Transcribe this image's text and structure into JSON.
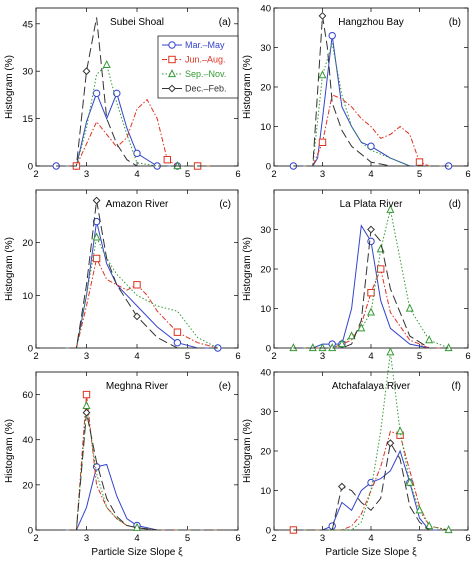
{
  "chart_data": {
    "type": "line",
    "xlabel": "Particle Size Slope ξ",
    "ylabel": "Histogram (%)",
    "xlim": [
      2,
      6
    ],
    "xticks": [
      2,
      3,
      4,
      5,
      6
    ],
    "legend": {
      "placement": "top-right of panel (a)",
      "entries": [
        "Mar.–May",
        "Jun.–Aug.",
        "Sep.–Nov.",
        "Dec.–Feb."
      ]
    },
    "styles": [
      {
        "name": "Mar.–May",
        "color": "#3344cc",
        "dash": "",
        "marker": "circle"
      },
      {
        "name": "Jun.–Aug.",
        "color": "#dd3322",
        "dash": "5,2,1.5,2",
        "marker": "square"
      },
      {
        "name": "Sep.–Nov.",
        "color": "#339933",
        "dash": "1.5,2",
        "marker": "triangle"
      },
      {
        "name": "Dec.–Feb.",
        "color": "#333333",
        "dash": "9,4",
        "marker": "diamond"
      }
    ],
    "panels": [
      {
        "title": "Subei Shoal",
        "label": "(a)",
        "ylim": [
          0,
          50
        ],
        "yticks": [
          0,
          15,
          30,
          45
        ],
        "has_legend": true,
        "series": [
          {
            "name": "Mar.–May",
            "x": [
              2.4,
              2.8,
              3.0,
              3.2,
              3.4,
              3.6,
              3.8,
              4.0,
              4.4,
              4.8,
              5.2,
              5.6
            ],
            "y": [
              0,
              0,
              14,
              23,
              15,
              23,
              12,
              4,
              0,
              0,
              0,
              0
            ],
            "markers": [
              0,
              1,
              3,
              5,
              7,
              8,
              9
            ]
          },
          {
            "name": "Jun.–Aug.",
            "x": [
              2.4,
              2.8,
              3.0,
              3.2,
              3.4,
              3.6,
              3.8,
              4.0,
              4.2,
              4.4,
              4.6,
              4.8,
              5.2,
              5.6
            ],
            "y": [
              0,
              0,
              7,
              14,
              10,
              6,
              9,
              18,
              21,
              15,
              2,
              0,
              0,
              0
            ],
            "markers": [
              1,
              10,
              12
            ]
          },
          {
            "name": "Sep.–Nov.",
            "x": [
              2.4,
              2.8,
              3.0,
              3.2,
              3.4,
              3.6,
              3.8,
              4.0,
              4.4,
              4.8,
              5.2,
              5.6
            ],
            "y": [
              0,
              0,
              12,
              29,
              32,
              20,
              10,
              1,
              0,
              0,
              0,
              0
            ],
            "markers": [
              4,
              9
            ]
          },
          {
            "name": "Dec.–Feb.",
            "x": [
              2.4,
              2.8,
              3.0,
              3.2,
              3.4,
              3.6,
              3.8,
              4.0,
              4.4,
              4.8,
              5.2,
              5.6
            ],
            "y": [
              0,
              0,
              30,
              47,
              15,
              7,
              2,
              0,
              0,
              0,
              0,
              0
            ],
            "markers": [
              2
            ]
          }
        ]
      },
      {
        "title": "Hangzhou Bay",
        "label": "(b)",
        "ylim": [
          0,
          40
        ],
        "yticks": [
          0,
          10,
          20,
          30,
          40
        ],
        "has_legend": false,
        "series": [
          {
            "name": "Mar.–May",
            "x": [
              2.4,
              2.8,
              2.9,
              3.0,
              3.2,
              3.4,
              3.6,
              3.8,
              4.0,
              4.4,
              4.8,
              5.2,
              5.6
            ],
            "y": [
              0,
              0,
              2,
              12,
              33,
              15,
              10,
              6,
              5,
              2,
              0,
              0,
              0
            ],
            "markers": [
              0,
              4,
              8,
              12
            ]
          },
          {
            "name": "Jun.–Aug.",
            "x": [
              2.4,
              2.8,
              3.0,
              3.2,
              3.4,
              3.6,
              3.8,
              4.0,
              4.2,
              4.4,
              4.6,
              4.8,
              5.0,
              5.2,
              5.6
            ],
            "y": [
              0,
              0,
              6,
              18,
              17,
              15,
              12,
              10,
              7,
              8,
              10,
              8,
              1,
              0,
              0
            ],
            "markers": [
              2,
              12
            ]
          },
          {
            "name": "Sep.–Nov.",
            "x": [
              2.4,
              2.8,
              3.0,
              3.2,
              3.4,
              3.6,
              3.8,
              4.0,
              4.4,
              4.8,
              5.2,
              5.6
            ],
            "y": [
              0,
              0,
              23,
              31,
              18,
              10,
              6,
              4,
              2,
              0,
              0,
              0
            ],
            "markers": [
              2
            ]
          },
          {
            "name": "Dec.–Feb.",
            "x": [
              2.4,
              2.8,
              3.0,
              3.1,
              3.2,
              3.4,
              3.6,
              3.8,
              4.0,
              4.4,
              4.8,
              5.2,
              5.6
            ],
            "y": [
              0,
              0,
              38,
              30,
              16,
              9,
              5,
              3,
              1,
              0,
              0,
              0,
              0
            ],
            "markers": [
              2
            ]
          }
        ]
      },
      {
        "title": "Amazon River",
        "label": "(c)",
        "ylim": [
          0,
          30
        ],
        "yticks": [
          0,
          10,
          20
        ],
        "has_legend": false,
        "series": [
          {
            "name": "Mar.–May",
            "x": [
              2.4,
              2.8,
              3.0,
              3.2,
              3.4,
              3.6,
              3.8,
              4.0,
              4.4,
              4.8,
              5.2,
              5.6
            ],
            "y": [
              0,
              0,
              10,
              24,
              16,
              12,
              10,
              8,
              4,
              1,
              0,
              0
            ],
            "markers": [
              3,
              9,
              11
            ]
          },
          {
            "name": "Jun.–Aug.",
            "x": [
              2.4,
              2.8,
              3.0,
              3.2,
              3.4,
              3.6,
              3.8,
              4.0,
              4.2,
              4.4,
              4.8,
              5.2,
              5.6
            ],
            "y": [
              0,
              0,
              8,
              17,
              13,
              12,
              11,
              12,
              10,
              7,
              3,
              1,
              0
            ],
            "markers": [
              3,
              7,
              10
            ]
          },
          {
            "name": "Sep.–Nov.",
            "x": [
              2.4,
              2.8,
              3.0,
              3.2,
              3.4,
              3.6,
              3.8,
              4.0,
              4.4,
              4.8,
              5.2,
              5.6
            ],
            "y": [
              0,
              0,
              10,
              21,
              17,
              14,
              12,
              10,
              8,
              7,
              2,
              0
            ],
            "markers": [
              3
            ]
          },
          {
            "name": "Dec.–Feb.",
            "x": [
              2.4,
              2.8,
              3.0,
              3.2,
              3.4,
              3.6,
              3.8,
              4.0,
              4.4,
              4.8,
              5.2,
              5.6
            ],
            "y": [
              0,
              0,
              12,
              28,
              17,
              12,
              9,
              6,
              2,
              0,
              0,
              0
            ],
            "markers": [
              3,
              7
            ]
          }
        ]
      },
      {
        "title": "La Plata River",
        "label": "(d)",
        "ylim": [
          0,
          40
        ],
        "yticks": [
          0,
          10,
          20,
          30
        ],
        "has_legend": false,
        "series": [
          {
            "name": "Mar.–May",
            "x": [
              2.4,
              2.8,
              3.0,
              3.2,
              3.4,
              3.6,
              3.8,
              4.0,
              4.2,
              4.4,
              4.8,
              5.2,
              5.6
            ],
            "y": [
              0,
              0,
              1,
              1,
              1,
              10,
              31,
              27,
              12,
              5,
              1,
              0,
              0
            ],
            "markers": [
              3,
              4,
              7
            ]
          },
          {
            "name": "Jun.–Aug.",
            "x": [
              2.4,
              2.8,
              3.0,
              3.2,
              3.4,
              3.6,
              3.8,
              4.0,
              4.2,
              4.4,
              4.8,
              5.2,
              5.6
            ],
            "y": [
              0,
              0,
              0,
              0,
              1,
              2,
              6,
              14,
              20,
              9,
              2,
              0,
              0
            ],
            "markers": [
              7,
              8
            ]
          },
          {
            "name": "Sep.–Nov.",
            "x": [
              2.4,
              2.8,
              3.0,
              3.2,
              3.4,
              3.6,
              3.8,
              4.0,
              4.2,
              4.4,
              4.8,
              5.2,
              5.6
            ],
            "y": [
              0,
              0,
              0,
              0,
              1,
              3,
              5,
              9,
              25,
              35,
              10,
              2,
              0
            ],
            "markers": [
              0,
              1,
              2,
              3,
              4,
              5,
              6,
              7,
              8,
              9,
              10,
              11,
              12
            ]
          },
          {
            "name": "Dec.–Feb.",
            "x": [
              2.4,
              2.8,
              3.0,
              3.2,
              3.4,
              3.6,
              3.8,
              4.0,
              4.2,
              4.4,
              4.8,
              5.2,
              5.6
            ],
            "y": [
              0,
              0,
              0,
              0,
              0,
              1,
              7,
              30,
              27,
              15,
              3,
              0,
              0
            ],
            "markers": [
              7
            ]
          }
        ]
      },
      {
        "title": "Meghna River",
        "label": "(e)",
        "ylim": [
          0,
          70
        ],
        "yticks": [
          0,
          20,
          40,
          60
        ],
        "has_legend": false,
        "series": [
          {
            "name": "Mar.–May",
            "x": [
              2.4,
              2.8,
              3.0,
              3.2,
              3.4,
              3.6,
              3.8,
              4.0,
              4.4,
              4.8,
              5.2,
              5.6
            ],
            "y": [
              0,
              0,
              10,
              28,
              29,
              15,
              5,
              2,
              0,
              0,
              0,
              0
            ],
            "markers": [
              3,
              7
            ]
          },
          {
            "name": "Jun.–Aug.",
            "x": [
              2.4,
              2.8,
              3.0,
              3.2,
              3.4,
              3.6,
              3.8,
              4.0,
              4.4,
              4.8,
              5.2,
              5.6
            ],
            "y": [
              0,
              0,
              60,
              20,
              10,
              5,
              2,
              1,
              0,
              0,
              0,
              0
            ],
            "markers": [
              2
            ]
          },
          {
            "name": "Sep.–Nov.",
            "x": [
              2.4,
              2.8,
              3.0,
              3.2,
              3.4,
              3.6,
              3.8,
              4.0,
              4.4,
              4.8,
              5.2,
              5.6
            ],
            "y": [
              0,
              0,
              55,
              25,
              10,
              5,
              2,
              1,
              0,
              0,
              0,
              0
            ],
            "markers": [
              2,
              7
            ]
          },
          {
            "name": "Dec.–Feb.",
            "x": [
              2.4,
              2.8,
              3.0,
              3.2,
              3.4,
              3.6,
              3.8,
              4.0,
              4.4,
              4.8,
              5.2,
              5.6
            ],
            "y": [
              0,
              0,
              52,
              30,
              14,
              6,
              2,
              1,
              0,
              0,
              0,
              0
            ],
            "markers": [
              2
            ]
          }
        ]
      },
      {
        "title": "Atchafalaya River",
        "label": "(f)",
        "ylim": [
          0,
          40
        ],
        "yticks": [
          0,
          10,
          20,
          30,
          40
        ],
        "has_legend": false,
        "series": [
          {
            "name": "Mar.–May",
            "x": [
              2.4,
              2.8,
              3.0,
              3.2,
              3.4,
              3.6,
              3.8,
              4.0,
              4.2,
              4.4,
              4.6,
              4.8,
              5.0,
              5.2,
              5.6
            ],
            "y": [
              0,
              0,
              0,
              1,
              7,
              5,
              10,
              12,
              13,
              15,
              20,
              12,
              3,
              0,
              0
            ],
            "markers": [
              3,
              7,
              11
            ]
          },
          {
            "name": "Jun.–Aug.",
            "x": [
              2.4,
              2.8,
              3.0,
              3.2,
              3.4,
              3.6,
              3.8,
              4.0,
              4.2,
              4.4,
              4.6,
              4.8,
              5.0,
              5.2,
              5.6
            ],
            "y": [
              0,
              0,
              0,
              0,
              0,
              1,
              4,
              10,
              16,
              25,
              24,
              15,
              6,
              1,
              0
            ],
            "markers": [
              0,
              10
            ]
          },
          {
            "name": "Sep.–Nov.",
            "x": [
              2.4,
              2.8,
              3.0,
              3.2,
              3.4,
              3.6,
              3.8,
              4.0,
              4.2,
              4.4,
              4.6,
              4.8,
              5.0,
              5.2,
              5.6
            ],
            "y": [
              0,
              0,
              0,
              0,
              0,
              0,
              2,
              10,
              25,
              45,
              25,
              12,
              5,
              1,
              0
            ],
            "markers": [
              9,
              10,
              11,
              12,
              13,
              14
            ]
          },
          {
            "name": "Dec.–Feb.",
            "x": [
              2.4,
              2.8,
              3.0,
              3.2,
              3.4,
              3.6,
              3.8,
              4.0,
              4.2,
              4.4,
              4.6,
              4.8,
              5.0,
              5.2,
              5.6
            ],
            "y": [
              0,
              0,
              0,
              0,
              11,
              10,
              7,
              5,
              8,
              22,
              18,
              6,
              2,
              0,
              0
            ],
            "markers": [
              4,
              9
            ]
          }
        ]
      }
    ]
  }
}
